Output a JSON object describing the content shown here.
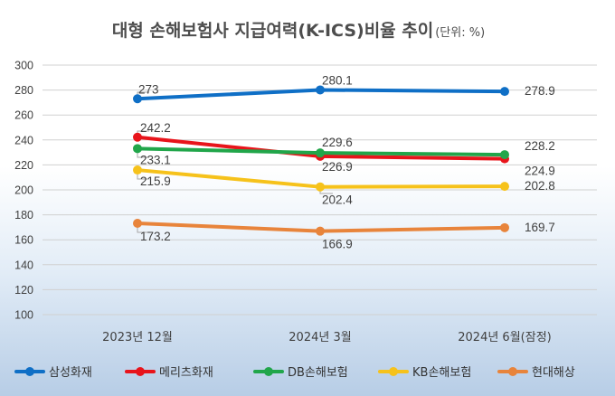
{
  "chart_data": {
    "type": "line",
    "title": "대형 손해보험사 지급여력(K-ICS)비율 추이",
    "unit": "(단위: %)",
    "categories": [
      "2023년 12월",
      "2024년 3월",
      "2024년 6월(잠정)"
    ],
    "ylim": [
      100,
      300
    ],
    "yticks": [
      100,
      120,
      140,
      160,
      180,
      200,
      220,
      240,
      260,
      280,
      300
    ],
    "grid": true,
    "legend_position": "bottom",
    "series": [
      {
        "name": "삼성화재",
        "color": "#0f6fc6",
        "values": [
          273,
          280.1,
          278.9
        ],
        "labels": [
          "273",
          "280.1",
          "278.9"
        ]
      },
      {
        "name": "메리츠화재",
        "color": "#e8141b",
        "values": [
          242.2,
          226.9,
          224.9
        ],
        "labels": [
          "242.2",
          "226.9",
          "224.9"
        ]
      },
      {
        "name": "DB손해보험",
        "color": "#21a64a",
        "values": [
          233.1,
          229.6,
          228.2
        ],
        "labels": [
          "233.1",
          "229.6",
          "228.2"
        ]
      },
      {
        "name": "KB손해보험",
        "color": "#f6c21b",
        "values": [
          215.9,
          202.4,
          202.8
        ],
        "labels": [
          "215.9",
          "202.4",
          "202.8"
        ]
      },
      {
        "name": "현대해상",
        "color": "#e8843b",
        "values": [
          173.2,
          166.9,
          169.7
        ],
        "labels": [
          "173.2",
          "166.9",
          "169.7"
        ]
      }
    ]
  }
}
